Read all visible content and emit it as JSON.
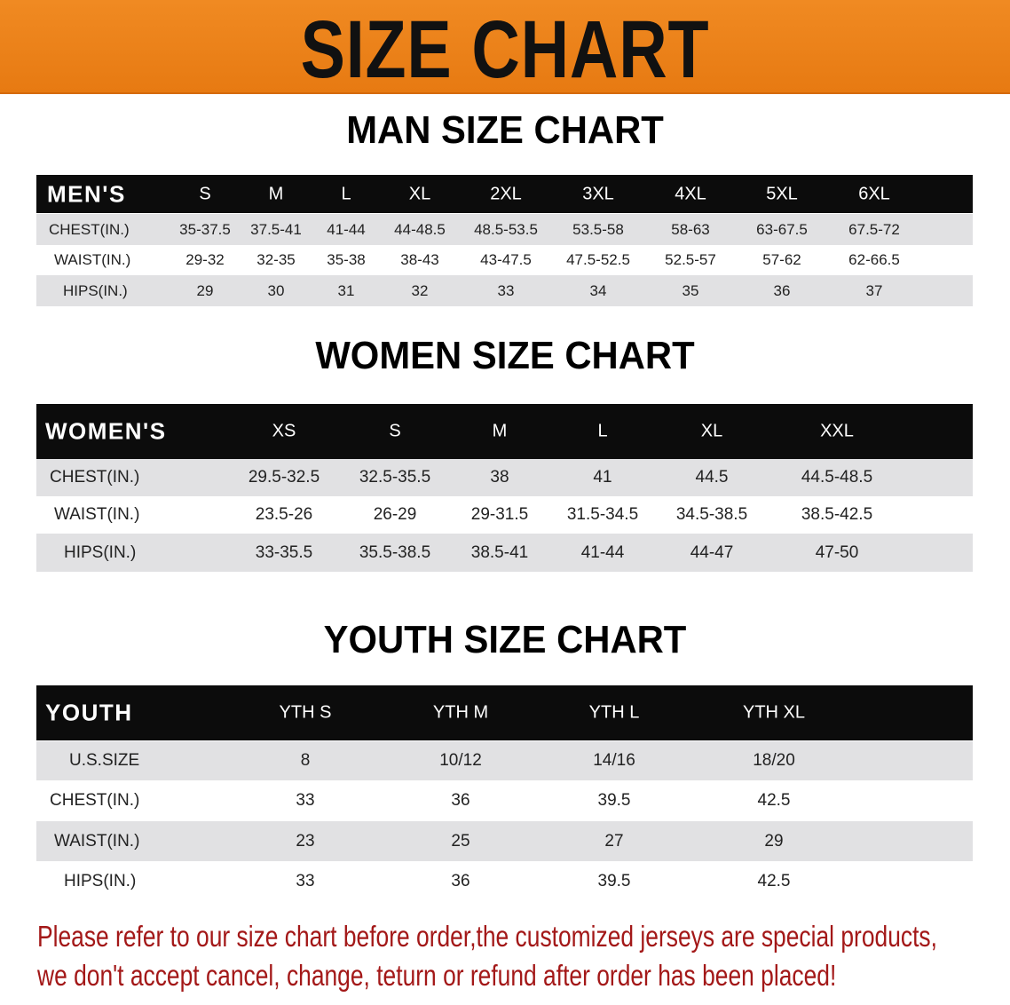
{
  "banner": {
    "title": "SIZE CHART",
    "color": "#ec8219"
  },
  "men": {
    "title": "MAN SIZE CHART",
    "header": [
      "MEN'S",
      "S",
      "M",
      "L",
      "XL",
      "2XL",
      "3XL",
      "4XL",
      "5XL",
      "6XL"
    ],
    "rows": [
      [
        "CHEST(IN.)",
        "35-37.5",
        "37.5-41",
        "41-44",
        "44-48.5",
        "48.5-53.5",
        "53.5-58",
        "58-63",
        "63-67.5",
        "67.5-72"
      ],
      [
        "WAIST(IN.)",
        "29-32",
        "32-35",
        "35-38",
        "38-43",
        "43-47.5",
        "47.5-52.5",
        "52.5-57",
        "57-62",
        "62-66.5"
      ],
      [
        "HIPS(IN.)",
        "29",
        "30",
        "31",
        "32",
        "33",
        "34",
        "35",
        "36",
        "37"
      ]
    ]
  },
  "women": {
    "title": "WOMEN SIZE CHART",
    "header": [
      "WOMEN'S",
      "XS",
      "S",
      "M",
      "L",
      "XL",
      "XXL"
    ],
    "rows": [
      [
        "CHEST(IN.)",
        "29.5-32.5",
        "32.5-35.5",
        "38",
        "41",
        "44.5",
        "44.5-48.5"
      ],
      [
        "WAIST(IN.)",
        "23.5-26",
        "26-29",
        "29-31.5",
        "31.5-34.5",
        "34.5-38.5",
        "38.5-42.5"
      ],
      [
        "HIPS(IN.)",
        "33-35.5",
        "35.5-38.5",
        "38.5-41",
        "41-44",
        "44-47",
        "47-50"
      ]
    ]
  },
  "youth": {
    "title": "YOUTH SIZE CHART",
    "header": [
      "YOUTH",
      "YTH S",
      "YTH M",
      "YTH L",
      "YTH XL"
    ],
    "rows": [
      [
        "U.S.SIZE",
        "8",
        "10/12",
        "14/16",
        "18/20"
      ],
      [
        "CHEST(IN.)",
        "33",
        "36",
        "39.5",
        "42.5"
      ],
      [
        "WAIST(IN.)",
        "23",
        "25",
        "27",
        "29"
      ],
      [
        "HIPS(IN.)",
        "33",
        "36",
        "39.5",
        "42.5"
      ]
    ]
  },
  "notice": {
    "line1": "Please refer to our size chart before order,the customized jerseys are special products,",
    "line2": "we don't accept cancel, change, teturn or refund after order has been placed!",
    "color": "#a31818"
  }
}
